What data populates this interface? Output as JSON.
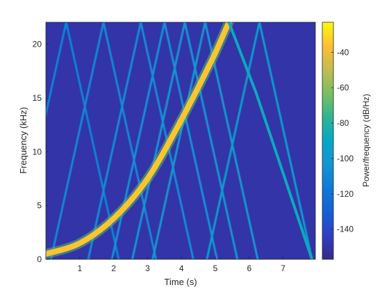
{
  "chart_data": {
    "type": "heatmap",
    "subtype": "spectrogram",
    "xlabel": "Time (s)",
    "ylabel": "Frequency (kHz)",
    "colorbar_label": "Power/frequency (dB/Hz)",
    "xlim": [
      0,
      7.95
    ],
    "ylim": [
      0,
      22.05
    ],
    "x_ticks": [
      1,
      2,
      3,
      4,
      5,
      6,
      7
    ],
    "y_ticks": [
      0,
      5,
      10,
      15,
      20
    ],
    "colorbar_ticks": [
      -40,
      -60,
      -80,
      -100,
      -120,
      -140
    ],
    "clim": [
      -157,
      -23
    ],
    "colormap": "parula",
    "background_level_db": -150,
    "series": [
      {
        "kind": "fundamental-chirp",
        "points": [
          [
            0,
            0.5
          ],
          [
            1,
            1.5
          ],
          [
            2,
            3.8
          ],
          [
            3,
            7.5
          ],
          [
            4,
            13.0
          ],
          [
            5,
            19.2
          ],
          [
            5.4,
            22.05
          ],
          [
            6.2,
            15.5
          ],
          [
            7.0,
            8.0
          ],
          [
            7.85,
            0
          ]
        ],
        "level_db": -35
      },
      {
        "kind": "aliased-harmonics",
        "peaks": [
          {
            "t": 0.6,
            "level_db": -112
          },
          {
            "t": 1.7,
            "level_db": -110
          },
          {
            "t": 2.8,
            "level_db": -108
          },
          {
            "t": 3.5,
            "level_db": -106
          },
          {
            "t": 4.1,
            "level_db": -104
          },
          {
            "t": 4.7,
            "level_db": -102
          },
          {
            "t": 6.3,
            "level_db": -98
          }
        ]
      }
    ],
    "grid": false
  }
}
